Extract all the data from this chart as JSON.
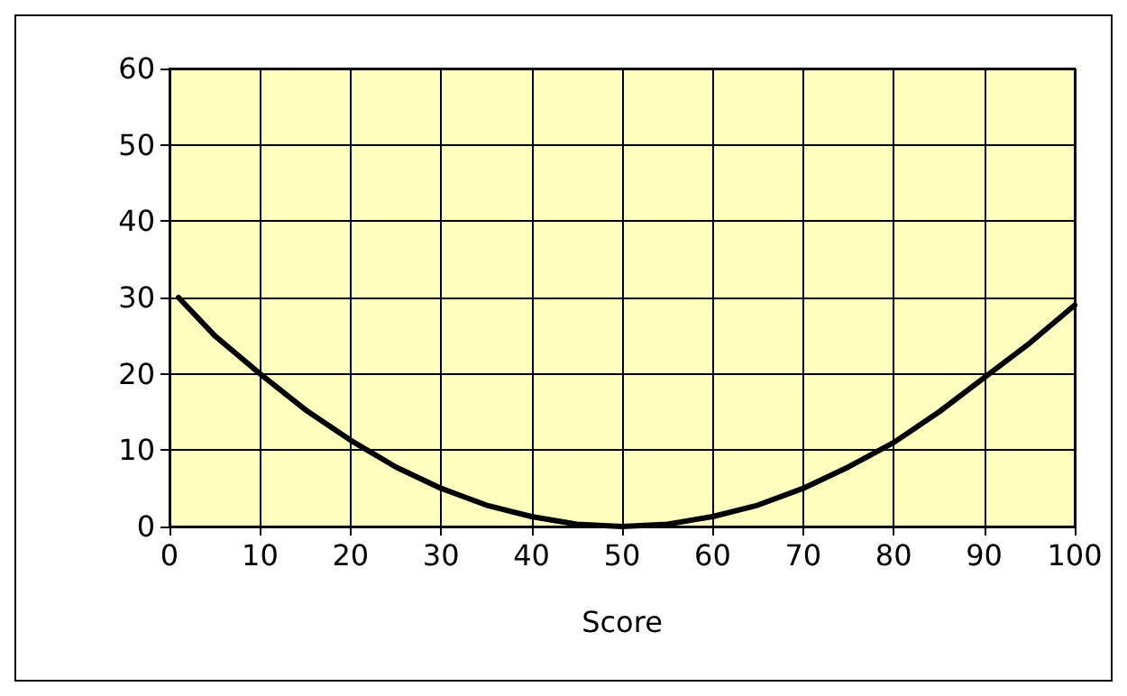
{
  "chart_data": {
    "type": "line",
    "xlabel": "Score",
    "x": [
      1,
      5,
      10,
      15,
      20,
      25,
      30,
      35,
      40,
      45,
      50,
      55,
      60,
      65,
      70,
      75,
      80,
      85,
      90,
      95,
      100
    ],
    "series": [
      {
        "color": "#000000",
        "values": [
          30,
          25,
          20,
          15.3,
          11.3,
          7.8,
          5,
          2.8,
          1.3,
          0.3,
          0,
          0.3,
          1.3,
          2.8,
          5,
          7.8,
          11,
          15,
          19.5,
          24,
          29
        ]
      }
    ],
    "xlim": [
      0,
      100
    ],
    "xticks": [
      0,
      10,
      20,
      30,
      40,
      50,
      60,
      70,
      80,
      90,
      100
    ],
    "ylim": [
      0,
      60
    ],
    "yticks": [
      0,
      10,
      20,
      30,
      40,
      50,
      60
    ],
    "grid": true,
    "marker": "none",
    "line_style": "solid"
  }
}
